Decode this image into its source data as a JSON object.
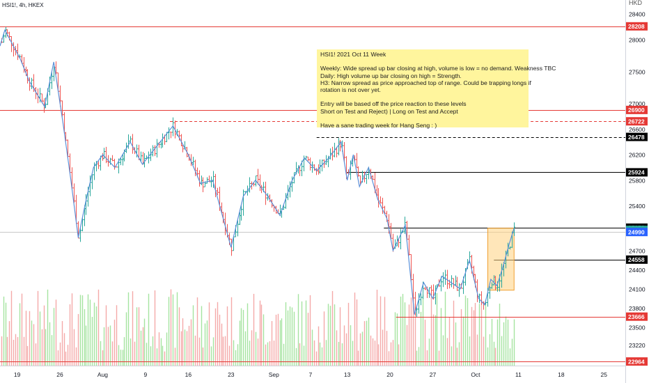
{
  "symbol_label": "HSI1!, 4h, HKEX",
  "currency": "HKD",
  "annotation": {
    "lines": [
      "HSI1!  2021 Oct 11 Week",
      "",
      "Weekly: Wide spread up bar closing at high, volume is low = no demand. Weakness TBC",
      "Daily: High volume up bar closing on high = Strength.",
      "H3: Narrow spread as price approached top of range. Could be trapping longs if",
      "rotation is not over yet.",
      "",
      "Entry will be based off the price reaction to these levels",
      "Short on Test and Reject)   |    Long on Test and Accept",
      "",
      "Have a sane trading week for Hang Seng : )"
    ]
  },
  "colors": {
    "up": "#26a69a",
    "down": "#ef5350",
    "vol_up": "#a5e3a0",
    "vol_down": "#f4a9a8",
    "zigzag": "#5b8fd8",
    "red_level": "#e53935",
    "black_level": "#000000",
    "highlight_box": "#ffd180",
    "current_price": "#26a69a",
    "blue_label": "#2962ff"
  },
  "chart_data": {
    "type": "candlestick",
    "title": "",
    "xlabel": "",
    "ylabel": "",
    "y_axis_ticks": [
      28400,
      28000,
      27500,
      27000,
      26600,
      26200,
      25800,
      25400,
      24700,
      24400,
      24100,
      23800,
      23500,
      23220
    ],
    "x_axis_ticks": [
      {
        "label": "19",
        "x": 19
      },
      {
        "label": "26",
        "x": 26
      },
      {
        "label": "Aug",
        "x": 33
      },
      {
        "label": "9",
        "x": 40
      },
      {
        "label": "16",
        "x": 47
      },
      {
        "label": "23",
        "x": 54
      },
      {
        "label": "Sep",
        "x": 61
      },
      {
        "label": "7",
        "x": 67
      },
      {
        "label": "13",
        "x": 73
      },
      {
        "label": "20",
        "x": 80
      },
      {
        "label": "27",
        "x": 87
      },
      {
        "label": "Oct",
        "x": 94
      },
      {
        "label": "11",
        "x": 101
      },
      {
        "label": "18",
        "x": 108
      },
      {
        "label": "25",
        "x": 115
      }
    ],
    "x_range": [
      16.2,
      118.5
    ],
    "y_range": [
      22900,
      28620
    ],
    "price_labels": [
      {
        "value": 28208,
        "label": "28208",
        "style": "red"
      },
      {
        "value": 26900,
        "label": "26900",
        "style": "red"
      },
      {
        "value": 26722,
        "label": "26722",
        "style": "red-dashed"
      },
      {
        "value": 26478,
        "label": "26478",
        "style": "black-dashed"
      },
      {
        "value": 25924,
        "label": "25924",
        "style": "black"
      },
      {
        "value": 25058,
        "label": "25058",
        "style": "black"
      },
      {
        "value": 25023,
        "label": "25023",
        "style": "current"
      },
      {
        "value": 24990,
        "label": "24990",
        "style": "blue"
      },
      {
        "value": 24558,
        "label": "24558",
        "style": "black"
      },
      {
        "value": 23666,
        "label": "23666",
        "style": "red"
      },
      {
        "value": 22964,
        "label": "22964",
        "style": "red"
      }
    ],
    "levels": [
      {
        "value": 28208,
        "x_start": 16.2,
        "style": "red"
      },
      {
        "value": 26900,
        "x_start": 16.2,
        "style": "red"
      },
      {
        "value": 26722,
        "x_start": 44.0,
        "style": "red-dashed"
      },
      {
        "value": 26478,
        "x_start": 68.0,
        "style": "black-dashed"
      },
      {
        "value": 25924,
        "x_start": 73.0,
        "style": "black"
      },
      {
        "value": 25058,
        "x_start": 79.0,
        "style": "black"
      },
      {
        "value": 24990,
        "x_start": 16.2,
        "style": "grey"
      },
      {
        "value": 24558,
        "x_start": 97.0,
        "style": "black"
      },
      {
        "value": 23666,
        "x_start": 81.0,
        "style": "red"
      },
      {
        "value": 22964,
        "x_start": 16.2,
        "style": "red"
      }
    ],
    "highlight_box": {
      "x0": 96.0,
      "x1": 100.3,
      "y0": 24080,
      "y1": 25050
    },
    "zigzag": [
      {
        "x": 16.2,
        "y": 27900
      },
      {
        "x": 17.0,
        "y": 28150
      },
      {
        "x": 19.5,
        "y": 27700
      },
      {
        "x": 21.0,
        "y": 27350
      },
      {
        "x": 23.5,
        "y": 26950
      },
      {
        "x": 25.0,
        "y": 27650
      },
      {
        "x": 26.5,
        "y": 26700
      },
      {
        "x": 27.8,
        "y": 25800
      },
      {
        "x": 29.0,
        "y": 24900
      },
      {
        "x": 30.3,
        "y": 25500
      },
      {
        "x": 31.5,
        "y": 26000
      },
      {
        "x": 33.0,
        "y": 26200
      },
      {
        "x": 35.0,
        "y": 26000
      },
      {
        "x": 37.5,
        "y": 26400
      },
      {
        "x": 39.5,
        "y": 26050
      },
      {
        "x": 42.0,
        "y": 26350
      },
      {
        "x": 44.5,
        "y": 26650
      },
      {
        "x": 47.0,
        "y": 26200
      },
      {
        "x": 49.0,
        "y": 25750
      },
      {
        "x": 51.0,
        "y": 25800
      },
      {
        "x": 54.0,
        "y": 24750
      },
      {
        "x": 56.0,
        "y": 25550
      },
      {
        "x": 58.0,
        "y": 25800
      },
      {
        "x": 60.0,
        "y": 25550
      },
      {
        "x": 62.0,
        "y": 25250
      },
      {
        "x": 64.0,
        "y": 25800
      },
      {
        "x": 66.0,
        "y": 26150
      },
      {
        "x": 68.0,
        "y": 25950
      },
      {
        "x": 70.0,
        "y": 26150
      },
      {
        "x": 72.0,
        "y": 26400
      },
      {
        "x": 73.0,
        "y": 25800
      },
      {
        "x": 74.0,
        "y": 26200
      },
      {
        "x": 75.0,
        "y": 25700
      },
      {
        "x": 76.5,
        "y": 26000
      },
      {
        "x": 78.0,
        "y": 25500
      },
      {
        "x": 79.5,
        "y": 25200
      },
      {
        "x": 80.5,
        "y": 24700
      },
      {
        "x": 82.5,
        "y": 25100
      },
      {
        "x": 84.0,
        "y": 23700
      },
      {
        "x": 85.5,
        "y": 24200
      },
      {
        "x": 87.0,
        "y": 23950
      },
      {
        "x": 88.5,
        "y": 24300
      },
      {
        "x": 90.0,
        "y": 24200
      },
      {
        "x": 91.5,
        "y": 24100
      },
      {
        "x": 93.0,
        "y": 24550
      },
      {
        "x": 94.5,
        "y": 23950
      },
      {
        "x": 95.5,
        "y": 23850
      },
      {
        "x": 96.5,
        "y": 24250
      },
      {
        "x": 97.5,
        "y": 24150
      },
      {
        "x": 98.5,
        "y": 24450
      },
      {
        "x": 99.5,
        "y": 24800
      },
      {
        "x": 100.3,
        "y": 25050
      }
    ]
  }
}
